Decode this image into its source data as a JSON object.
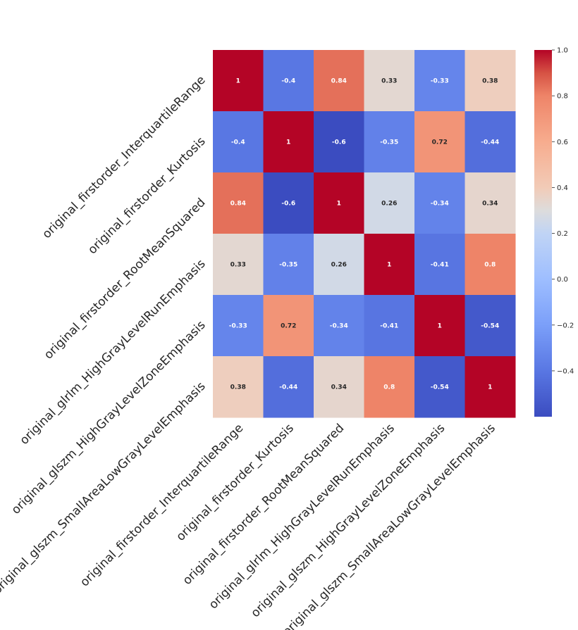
{
  "chart_data": {
    "type": "heatmap",
    "title": "",
    "variables": [
      "original_firstorder_InterquartileRange",
      "original_firstorder_Kurtosis",
      "original_firstorder_RootMeanSquared",
      "original_glrlm_HighGrayLevelRunEmphasis",
      "original_glszm_HighGrayLevelZoneEmphasis",
      "original_glszm_SmallAreaLowGrayLevelEmphasis"
    ],
    "matrix": [
      [
        1,
        -0.4,
        0.84,
        0.33,
        -0.33,
        0.38
      ],
      [
        -0.4,
        1,
        -0.6,
        -0.35,
        0.72,
        -0.44
      ],
      [
        0.84,
        -0.6,
        1,
        0.26,
        -0.34,
        0.34
      ],
      [
        0.33,
        -0.35,
        0.26,
        1,
        -0.41,
        0.8
      ],
      [
        -0.33,
        0.72,
        -0.34,
        -0.41,
        1,
        -0.54
      ],
      [
        0.38,
        -0.44,
        0.34,
        0.8,
        -0.54,
        1
      ]
    ],
    "annotations": [
      [
        "1",
        "-0.4",
        "0.84",
        "0.33",
        "-0.33",
        "0.38"
      ],
      [
        "-0.4",
        "1",
        "-0.6",
        "-0.35",
        "0.72",
        "-0.44"
      ],
      [
        "0.84",
        "-0.6",
        "1",
        "0.26",
        "-0.34",
        "0.34"
      ],
      [
        "0.33",
        "-0.35",
        "0.26",
        "1",
        "-0.41",
        "0.8"
      ],
      [
        "-0.33",
        "0.72",
        "-0.34",
        "-0.41",
        "1",
        "-0.54"
      ],
      [
        "0.38",
        "-0.44",
        "0.34",
        "0.8",
        "-0.54",
        "1"
      ]
    ],
    "colormap": "coolwarm",
    "vmin": -0.6,
    "vmax": 1.0,
    "colorbar": {
      "ticks": [
        1.0,
        0.8,
        0.6,
        0.4,
        0.2,
        0.0,
        -0.2,
        -0.4
      ],
      "tick_labels": [
        "1.0",
        "0.8",
        "0.6",
        "0.4",
        "0.2",
        "0.0",
        "−0.2",
        "−0.4"
      ],
      "location": "right"
    }
  }
}
